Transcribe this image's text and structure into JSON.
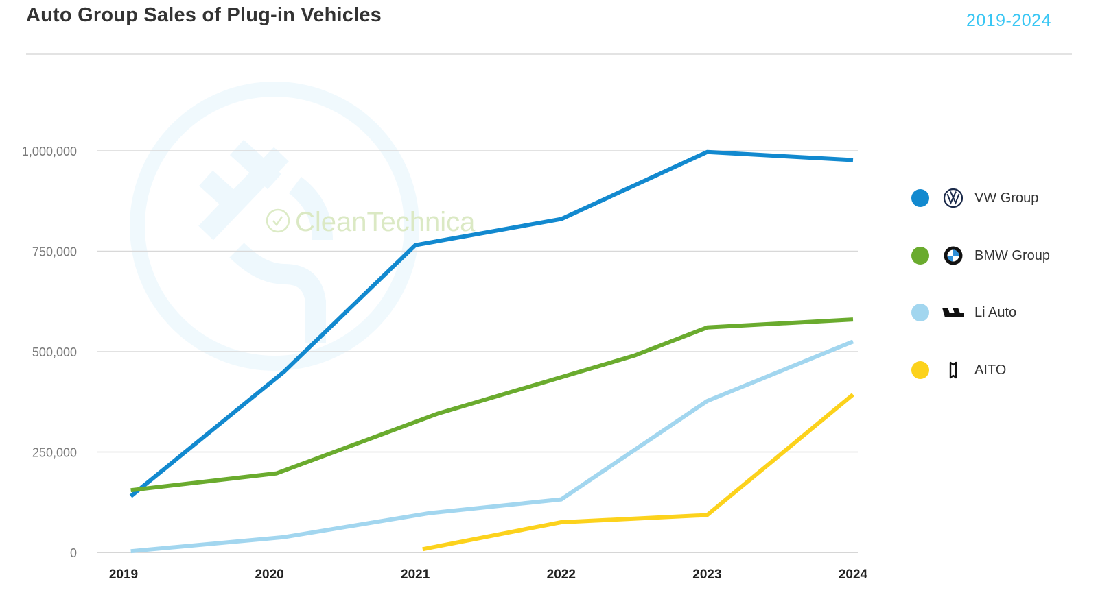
{
  "header": {
    "title": "Auto Group Sales of Plug-in Vehicles",
    "range": "2019-2024"
  },
  "watermark": {
    "text": "CleanTechnica"
  },
  "colors": {
    "vw": "#1289cf",
    "bmw": "#6aab2e",
    "li": "#a2d6ef",
    "aito": "#fcd21c",
    "grid": "#d8d8d8",
    "watermark": "#f0f9fd"
  },
  "chart_data": {
    "type": "line",
    "title": "Auto Group Sales of Plug-in Vehicles",
    "xlabel": "",
    "ylabel": "",
    "x": [
      2019,
      2020,
      2021,
      2022,
      2023,
      2024
    ],
    "x_tick_labels": [
      "2019",
      "2020",
      "2021",
      "2022",
      "2023",
      "2024"
    ],
    "y_ticks": [
      0,
      250000,
      500000,
      750000,
      1000000
    ],
    "y_tick_labels": [
      "0",
      "250,000",
      "500,000",
      "750,000",
      "1,000,000"
    ],
    "ylim": [
      0,
      1000000
    ],
    "grid": true,
    "legend_position": "right",
    "series": [
      {
        "key": "vw",
        "name": "VW Group",
        "icon": "vw-logo-icon",
        "x": [
          2019.05,
          2020.1,
          2021.0,
          2022.0,
          2023.0,
          2024.0
        ],
        "values": [
          140000,
          450000,
          765000,
          830000,
          997000,
          977000
        ]
      },
      {
        "key": "bmw",
        "name": "BMW Group",
        "icon": "bmw-logo-icon",
        "x": [
          2019.05,
          2020.05,
          2021.15,
          2022.5,
          2023.0,
          2024.0
        ],
        "values": [
          155000,
          197000,
          345000,
          490000,
          560000,
          580000
        ]
      },
      {
        "key": "li",
        "name": "Li Auto",
        "icon": "li-auto-logo-icon",
        "x": [
          2019.05,
          2020.1,
          2021.1,
          2022.0,
          2023.0,
          2024.0
        ],
        "values": [
          3000,
          38000,
          98000,
          132000,
          377000,
          525000
        ]
      },
      {
        "key": "aito",
        "name": "AITO",
        "icon": "aito-logo-icon",
        "x": [
          2021.05,
          2022.0,
          2023.0,
          2024.0
        ],
        "values": [
          8000,
          75000,
          93000,
          393000
        ]
      }
    ]
  }
}
